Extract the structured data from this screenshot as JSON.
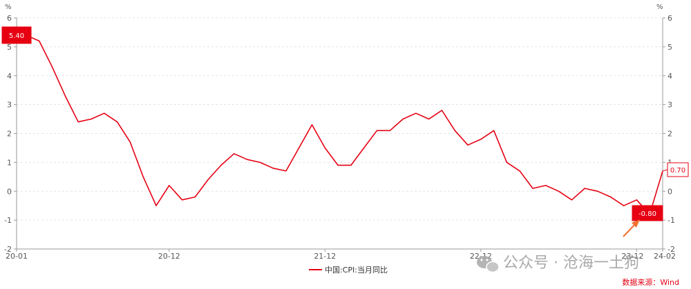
{
  "chart_data": {
    "type": "line",
    "y_unit_left": "%",
    "y_unit_right": "%",
    "ylim": [
      -2,
      6
    ],
    "yticks": [
      -2,
      -1,
      0,
      1,
      2,
      3,
      4,
      5,
      6
    ],
    "xtick_labels": [
      "20-01",
      "20-12",
      "21-12",
      "22-12",
      "23-12",
      "24-02"
    ],
    "xtick_indices": [
      0,
      11,
      23,
      35,
      47,
      49
    ],
    "grid": true,
    "legend_position": "bottom-center",
    "series": [
      {
        "name": "中国:CPI:当月同比",
        "color": "#e60012",
        "values": [
          5.4,
          5.2,
          4.3,
          3.3,
          2.4,
          2.5,
          2.7,
          2.4,
          1.7,
          0.5,
          -0.5,
          0.2,
          -0.3,
          -0.2,
          0.4,
          0.9,
          1.3,
          1.1,
          1.0,
          0.8,
          0.7,
          1.5,
          2.3,
          1.5,
          0.9,
          0.9,
          1.5,
          2.1,
          2.1,
          2.5,
          2.7,
          2.5,
          2.8,
          2.1,
          1.6,
          1.8,
          2.1,
          1.0,
          0.7,
          0.1,
          0.2,
          0.0,
          -0.3,
          0.1,
          0.0,
          -0.2,
          -0.5,
          -0.3,
          -0.8,
          0.7
        ]
      }
    ],
    "annotations": [
      {
        "label": "5.40",
        "index": 0,
        "style": "filled"
      },
      {
        "label": "-0.80",
        "index": 48,
        "style": "filled"
      },
      {
        "label": "0.70",
        "index": 49,
        "style": "outlined"
      }
    ]
  },
  "source": "数据来源：Wind",
  "watermark": "公众号 · 沧海一土狗",
  "icons": {
    "watermark": "wechat-icon",
    "pointer": "arrow-icon"
  }
}
